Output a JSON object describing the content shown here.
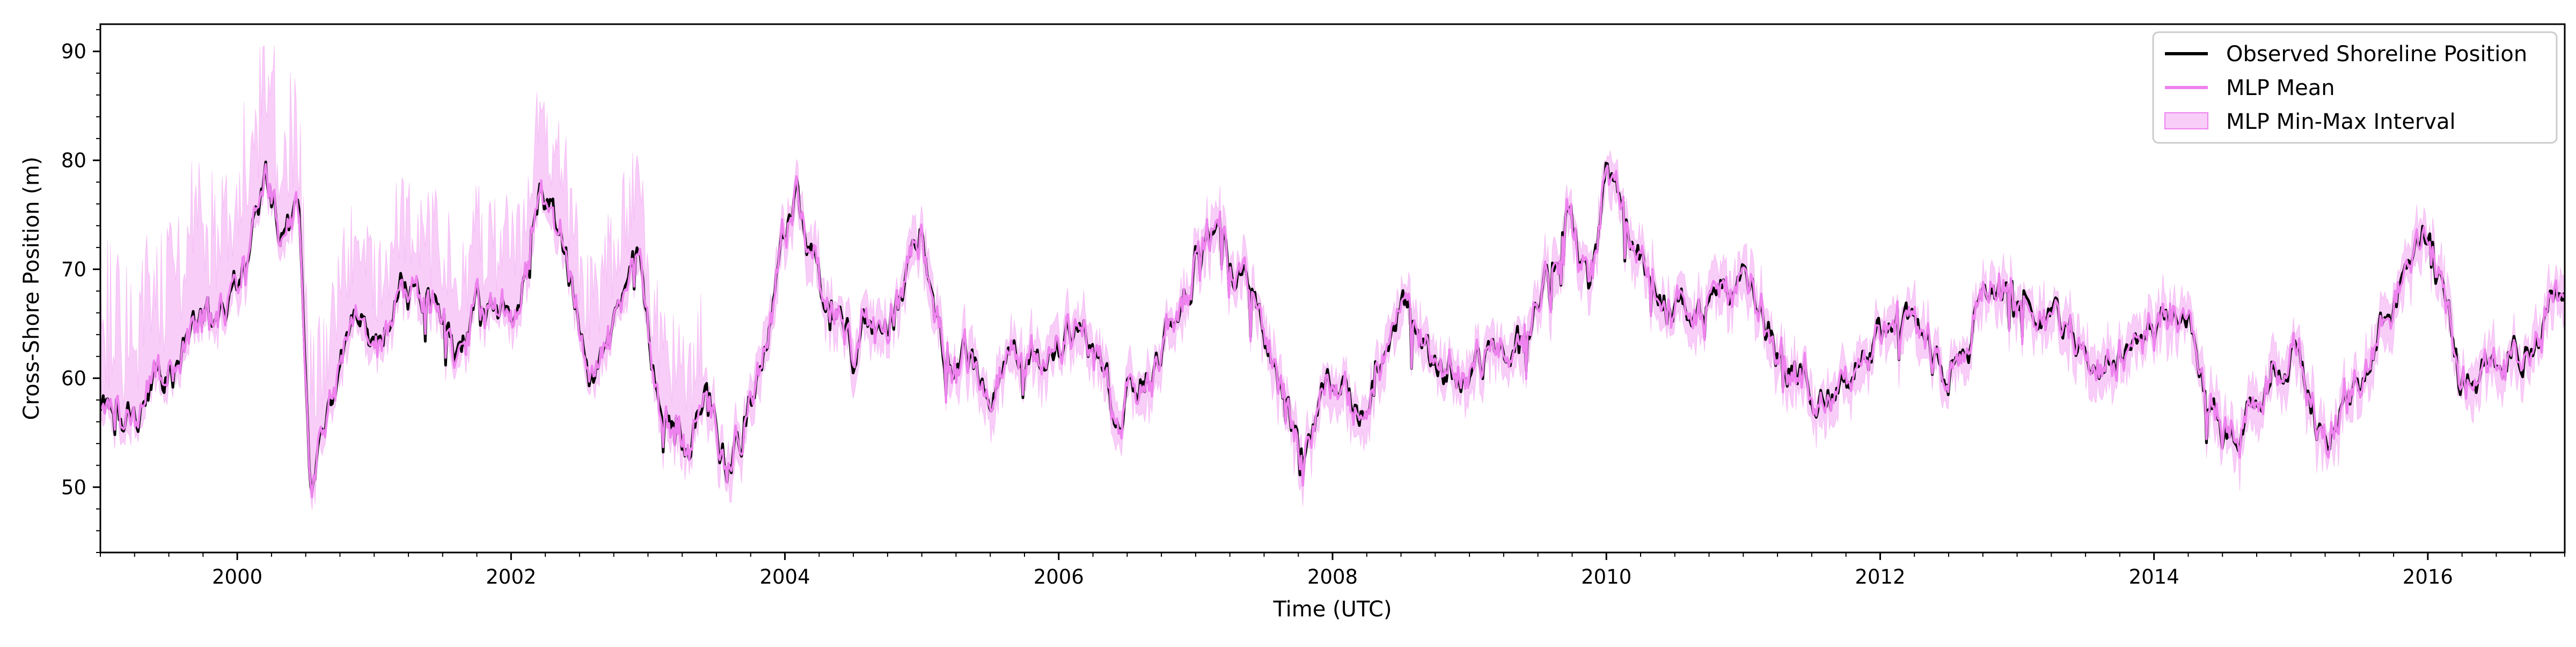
{
  "chart_data": {
    "type": "line",
    "title": "",
    "xlabel": "Time (UTC)",
    "ylabel": "Cross-Shore Position (m)",
    "xlim": [
      "1999-01-01",
      "2017-01-01"
    ],
    "ylim": [
      44,
      92.5
    ],
    "x_ticks": [
      "2000",
      "2002",
      "2004",
      "2006",
      "2008",
      "2010",
      "2012",
      "2014",
      "2016"
    ],
    "y_ticks": [
      50,
      60,
      70,
      80,
      90
    ],
    "grid": false,
    "legend_position": "top-right",
    "legend": [
      {
        "label": "Observed Shoreline Position",
        "kind": "line",
        "color": "#000000"
      },
      {
        "label": "MLP Mean",
        "kind": "line",
        "color": "#ee82ee"
      },
      {
        "label": "MLP Min-Max Interval",
        "kind": "band",
        "color": "#ee82ee"
      }
    ],
    "series": [
      {
        "name": "Observed Shoreline Position",
        "color": "#000000",
        "anchors": [
          [
            "1999-01-01",
            58
          ],
          [
            "1999-03-01",
            55
          ],
          [
            "1999-06-01",
            60
          ],
          [
            "1999-09-01",
            63
          ],
          [
            "1999-12-01",
            66
          ],
          [
            "2000-02-01",
            70
          ],
          [
            "2000-03-15",
            77
          ],
          [
            "2000-05-01",
            73
          ],
          [
            "2000-06-15",
            75
          ],
          [
            "2000-07-15",
            50
          ],
          [
            "2000-09-01",
            58
          ],
          [
            "2000-11-01",
            66
          ],
          [
            "2001-01-15",
            63
          ],
          [
            "2001-04-01",
            69
          ],
          [
            "2001-06-01",
            67
          ],
          [
            "2001-08-01",
            62
          ],
          [
            "2001-10-01",
            66
          ],
          [
            "2001-12-01",
            64
          ],
          [
            "2002-02-01",
            70
          ],
          [
            "2002-03-15",
            76
          ],
          [
            "2002-05-01",
            73
          ],
          [
            "2002-06-15",
            68
          ],
          [
            "2002-08-01",
            60
          ],
          [
            "2002-10-01",
            64
          ],
          [
            "2002-12-01",
            70
          ],
          [
            "2003-02-01",
            58
          ],
          [
            "2003-04-01",
            53
          ],
          [
            "2003-06-01",
            57
          ],
          [
            "2003-08-01",
            52
          ],
          [
            "2003-10-01",
            57
          ],
          [
            "2003-12-01",
            67
          ],
          [
            "2004-02-01",
            77
          ],
          [
            "2004-04-01",
            68
          ],
          [
            "2004-07-01",
            63
          ],
          [
            "2004-10-01",
            65
          ],
          [
            "2005-01-01",
            75
          ],
          [
            "2005-03-01",
            63
          ],
          [
            "2005-06-01",
            60
          ],
          [
            "2005-09-01",
            60
          ],
          [
            "2005-12-01",
            62
          ],
          [
            "2006-03-01",
            66
          ],
          [
            "2006-06-01",
            56
          ],
          [
            "2006-09-01",
            61
          ],
          [
            "2006-12-01",
            68
          ],
          [
            "2007-02-01",
            75
          ],
          [
            "2007-05-01",
            70
          ],
          [
            "2007-07-01",
            65
          ],
          [
            "2007-10-01",
            53
          ],
          [
            "2008-01-01",
            60
          ],
          [
            "2008-04-01",
            56
          ],
          [
            "2008-07-01",
            68
          ],
          [
            "2008-10-01",
            60
          ],
          [
            "2009-01-01",
            62
          ],
          [
            "2009-04-01",
            63
          ],
          [
            "2009-07-01",
            67
          ],
          [
            "2009-09-15",
            75
          ],
          [
            "2009-11-15",
            68
          ],
          [
            "2010-01-01",
            78
          ],
          [
            "2010-04-01",
            71
          ],
          [
            "2010-07-01",
            66
          ],
          [
            "2010-10-01",
            67
          ],
          [
            "2011-01-01",
            68
          ],
          [
            "2011-04-01",
            63
          ],
          [
            "2011-07-01",
            59
          ],
          [
            "2011-10-01",
            59
          ],
          [
            "2012-01-01",
            63
          ],
          [
            "2012-04-01",
            65
          ],
          [
            "2012-07-01",
            60
          ],
          [
            "2012-10-01",
            68
          ],
          [
            "2013-01-01",
            67
          ],
          [
            "2013-04-01",
            66
          ],
          [
            "2013-07-01",
            63
          ],
          [
            "2013-10-01",
            62
          ],
          [
            "2014-01-01",
            65
          ],
          [
            "2014-04-01",
            64
          ],
          [
            "2014-07-01",
            55
          ],
          [
            "2014-10-01",
            58
          ],
          [
            "2015-01-01",
            62
          ],
          [
            "2015-04-01",
            55
          ],
          [
            "2015-07-01",
            60
          ],
          [
            "2015-10-01",
            67
          ],
          [
            "2016-01-01",
            73
          ],
          [
            "2016-04-01",
            60
          ],
          [
            "2016-07-01",
            63
          ],
          [
            "2016-10-01",
            65
          ],
          [
            "2017-01-01",
            68
          ]
        ]
      },
      {
        "name": "MLP Mean",
        "color": "#ee82ee",
        "derived_from": "Observed Shoreline Position"
      },
      {
        "name": "MLP Min-Max Interval",
        "color": "#ee82ee",
        "derived_from": "MLP Mean"
      }
    ]
  }
}
